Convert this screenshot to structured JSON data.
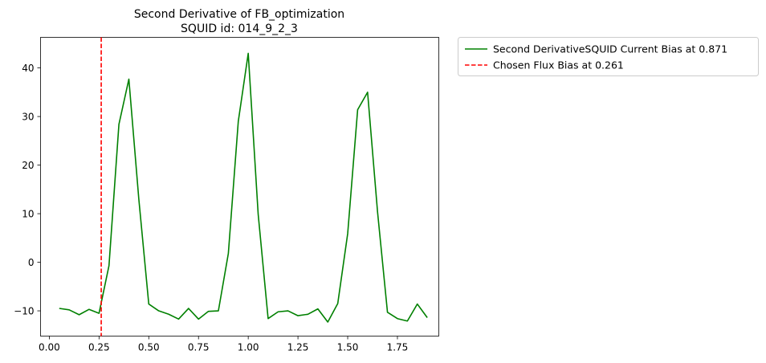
{
  "chart_data": {
    "type": "line",
    "title": "Second Derivative of FB_optimization",
    "subtitle": "SQUID id: 014_9_2_3",
    "xlabel": "",
    "ylabel": "",
    "xlim": [
      -0.044,
      1.958
    ],
    "ylim": [
      -15.2,
      46.3
    ],
    "xticks": [
      0.0,
      0.25,
      0.5,
      0.75,
      1.0,
      1.25,
      1.5,
      1.75
    ],
    "xtick_labels": [
      "0.00",
      "0.25",
      "0.50",
      "0.75",
      "1.00",
      "1.25",
      "1.50",
      "1.75"
    ],
    "yticks": [
      -10,
      0,
      10,
      20,
      30,
      40
    ],
    "ytick_labels": [
      "−10",
      "0",
      "10",
      "20",
      "30",
      "40"
    ],
    "grid": false,
    "legend_position": "outside-top-right",
    "series": [
      {
        "name": "Second DerivativeSQUID Current Bias at 0.871",
        "color": "#008000",
        "style": "solid",
        "x": [
          0.05,
          0.1,
          0.15,
          0.2,
          0.25,
          0.3,
          0.35,
          0.4,
          0.45,
          0.5,
          0.55,
          0.6,
          0.65,
          0.7,
          0.75,
          0.8,
          0.85,
          0.9,
          0.95,
          1.0,
          1.05,
          1.1,
          1.15,
          1.2,
          1.25,
          1.3,
          1.35,
          1.4,
          1.45,
          1.5,
          1.55,
          1.6,
          1.65,
          1.7,
          1.75,
          1.8,
          1.85,
          1.9
        ],
        "y": [
          -9.5,
          -9.8,
          -10.8,
          -9.7,
          -10.5,
          -0.7,
          28.4,
          37.7,
          13.0,
          -8.6,
          -10.0,
          -10.7,
          -11.7,
          -9.5,
          -11.7,
          -10.1,
          -10.0,
          1.8,
          29.0,
          43.0,
          9.9,
          -11.6,
          -10.2,
          -10.0,
          -11.0,
          -10.7,
          -9.6,
          -12.3,
          -8.5,
          5.9,
          31.4,
          35.0,
          10.4,
          -10.3,
          -11.6,
          -12.1,
          -8.6,
          -11.4
        ]
      },
      {
        "name": "Chosen Flux Bias at 0.261",
        "color": "#ff0000",
        "style": "dashed",
        "vline_x": 0.261
      }
    ]
  }
}
